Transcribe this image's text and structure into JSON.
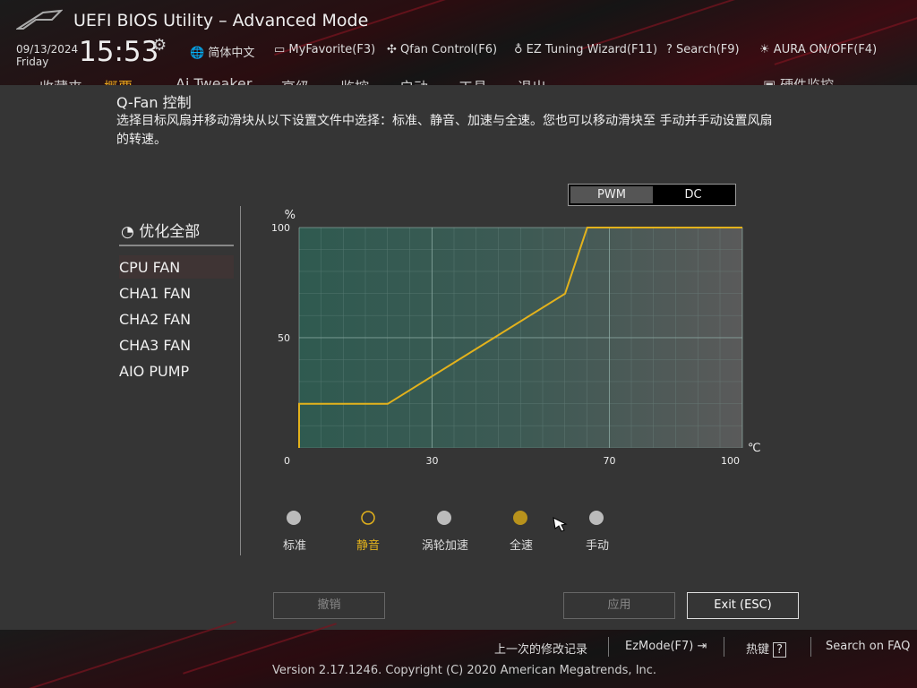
{
  "header": {
    "title": "UEFI BIOS Utility – Advanced Mode",
    "date": "09/13/2024",
    "day": "Friday",
    "time": "15:53",
    "toolbar": [
      "简体中文",
      "MyFavorite(F3)",
      "Qfan Control(F6)",
      "EZ Tuning Wizard(F11)",
      "Search(F9)",
      "AURA ON/OFF(F4)"
    ]
  },
  "tabs": [
    "收藏夹",
    "概要",
    "Ai Tweaker",
    "高级",
    "监控",
    "启动",
    "工具",
    "退出"
  ],
  "side_tab": "硬件监控",
  "panel": {
    "title": "Q-Fan 控制",
    "description": "选择目标风扇并移动滑块从以下设置文件中选择：标准、静音、加速与全速。您也可以移动滑块至 手动并手动设置风扇的转速。",
    "modes": [
      "PWM",
      "DC"
    ],
    "optimize_all": "优化全部",
    "fans": [
      "CPU FAN",
      "CHA1 FAN",
      "CHA2 FAN",
      "CHA3 FAN",
      "AIO PUMP"
    ],
    "profiles": [
      "标准",
      "静音",
      "涡轮加速",
      "全速",
      "手动"
    ],
    "buttons": {
      "undo": "撤销",
      "apply": "应用",
      "exit": "Exit (ESC)"
    }
  },
  "chart_data": {
    "type": "line",
    "x": [
      0,
      0,
      20,
      60,
      65,
      100
    ],
    "values": [
      0,
      20,
      20,
      70,
      100,
      100
    ],
    "xlim": [
      0,
      100
    ],
    "ylim": [
      0,
      100
    ],
    "xticks": [
      0,
      30,
      70,
      100
    ],
    "yticks": [
      50,
      100
    ],
    "ylabel": "%",
    "xlabel": "℃",
    "color": "#e3b21c"
  },
  "footer": {
    "links": [
      "上一次的修改记录",
      "EzMode(F7)",
      "热键",
      "Search on FAQ"
    ],
    "version": "Version 2.17.1246. Copyright (C) 2020 American Megatrends, Inc."
  }
}
